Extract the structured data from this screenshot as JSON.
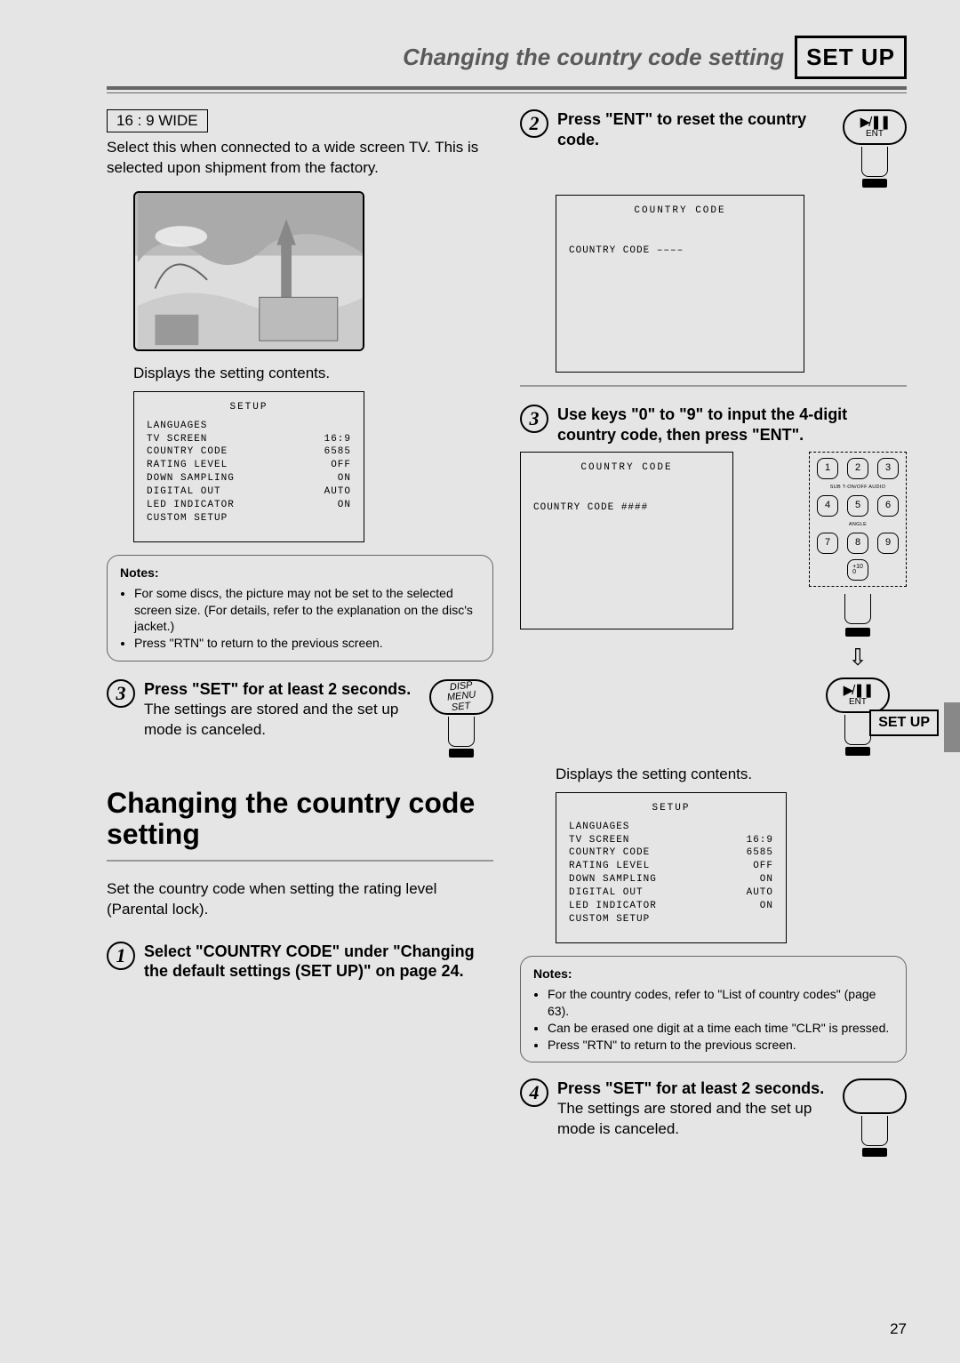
{
  "header": {
    "title": "Changing the country code setting",
    "badge": "SET UP"
  },
  "sideSetup": "SET UP",
  "pageNumber": "27",
  "left": {
    "wideLabel": "16 : 9 WIDE",
    "wideText": "Select this when connected to a wide screen TV.  This is selected upon shipment from the factory.",
    "displaysLabel": "Displays the setting contents.",
    "setupScreen": {
      "title": "SETUP",
      "rows": [
        {
          "l": "LANGUAGES",
          "r": ""
        },
        {
          "l": "TV SCREEN",
          "r": "16:9"
        },
        {
          "l": "COUNTRY CODE",
          "r": "6585"
        },
        {
          "l": "RATING LEVEL",
          "r": "OFF"
        },
        {
          "l": "DOWN SAMPLING",
          "r": "ON"
        },
        {
          "l": "DIGITAL OUT",
          "r": "AUTO"
        },
        {
          "l": "LED INDICATOR",
          "r": "ON"
        },
        {
          "l": "CUSTOM SETUP",
          "r": ""
        }
      ]
    },
    "notes": {
      "title": "Notes:",
      "items": [
        "For some discs, the picture may not be set to the selected screen size.  (For details, refer to the explanation on the disc's jacket.)",
        "Press \"RTN\" to return to the previous screen."
      ]
    },
    "step3": {
      "num": "3",
      "head": "Press \"SET\" for at least 2 seconds.",
      "body": "The settings are stored and the set up mode is canceled."
    },
    "dispBtn": {
      "l1": "DISP",
      "l2": "MENU",
      "l3": "SET"
    },
    "sectionTitle": "Changing the country code setting",
    "sectionBody": "Set the country code when setting the rating level (Parental lock).",
    "step1": {
      "num": "1",
      "head": "Select \"COUNTRY CODE\" under \"Changing the default settings (SET UP)\" on page 24."
    }
  },
  "right": {
    "step2": {
      "num": "2",
      "head": "Press \"ENT\" to reset the country code."
    },
    "entLabel": "ENT",
    "ccScreen1": {
      "title": "COUNTRY CODE",
      "row": "COUNTRY CODE    ––––"
    },
    "step3": {
      "num": "3",
      "head": "Use keys \"0\" to \"9\" to input the 4-digit country code, then press \"ENT\"."
    },
    "ccScreen2": {
      "title": "COUNTRY CODE",
      "row": "COUNTRY CODE  ####"
    },
    "keyLabels": {
      "r1": "SUB T-ON/OFF  AUDIO",
      "r2": "ANGLE"
    },
    "displaysLabel": "Displays the setting contents.",
    "setupScreen": {
      "title": "SETUP",
      "rows": [
        {
          "l": "LANGUAGES",
          "r": ""
        },
        {
          "l": "TV SCREEN",
          "r": "16:9"
        },
        {
          "l": "COUNTRY CODE",
          "r": "6585"
        },
        {
          "l": "RATING LEVEL",
          "r": "OFF"
        },
        {
          "l": "DOWN SAMPLING",
          "r": "ON"
        },
        {
          "l": "DIGITAL OUT",
          "r": "AUTO"
        },
        {
          "l": "LED INDICATOR",
          "r": "ON"
        },
        {
          "l": "CUSTOM SETUP",
          "r": ""
        }
      ]
    },
    "notes": {
      "title": "Notes:",
      "items": [
        "For the country codes, refer to \"List of country codes\" (page 63).",
        "Can be erased one digit at a time each time \"CLR\" is pressed.",
        "Press \"RTN\" to return to the previous screen."
      ]
    },
    "step4": {
      "num": "4",
      "head": "Press \"SET\" for at least 2 seconds.",
      "body": "The settings are stored and the set up mode is canceled."
    }
  },
  "keys": [
    "1",
    "2",
    "3",
    "4",
    "5",
    "6",
    "7",
    "8",
    "9",
    "",
    "+10\n0",
    ""
  ]
}
